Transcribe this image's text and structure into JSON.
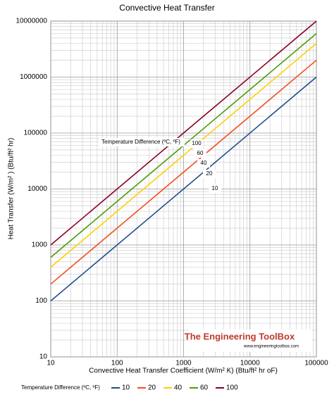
{
  "chart_data": {
    "type": "line",
    "title": "Convective Heat Transfer",
    "x_label": "Convective Heat Transfer Coefficient (W/m² K) (Btu/ft²  hr oF)",
    "y_label": "Heat Transfer (W/m² ) (Btu/ft² hr)",
    "annotation": "Temperature Difference (ºC, ºF)",
    "legend_title": "Temperature Difference (ºC, ºF)",
    "watermark": "The Engineering ToolBox",
    "watermark_url": "www.engineeringtoolbox.com",
    "x": [
      10,
      100000
    ],
    "series": [
      {
        "name": "10",
        "color": "#1f4e8c",
        "values": [
          100,
          1000000
        ]
      },
      {
        "name": "20",
        "color": "#f04e23",
        "values": [
          200,
          2000000
        ]
      },
      {
        "name": "40",
        "color": "#ffd000",
        "values": [
          400,
          4000000
        ]
      },
      {
        "name": "60",
        "color": "#4e9a06",
        "values": [
          600,
          6000000
        ]
      },
      {
        "name": "100",
        "color": "#8b0021",
        "values": [
          1000,
          10000000
        ]
      }
    ],
    "xlim": [
      10,
      100000
    ],
    "ylim": [
      10,
      10000000
    ],
    "xticks": [
      10,
      100,
      1000,
      10000,
      100000
    ],
    "yticks": [
      10,
      100,
      1000,
      10000,
      100000,
      1000000,
      10000000
    ],
    "log_x": true,
    "log_y": true,
    "grid": true,
    "legend": "bottom"
  }
}
